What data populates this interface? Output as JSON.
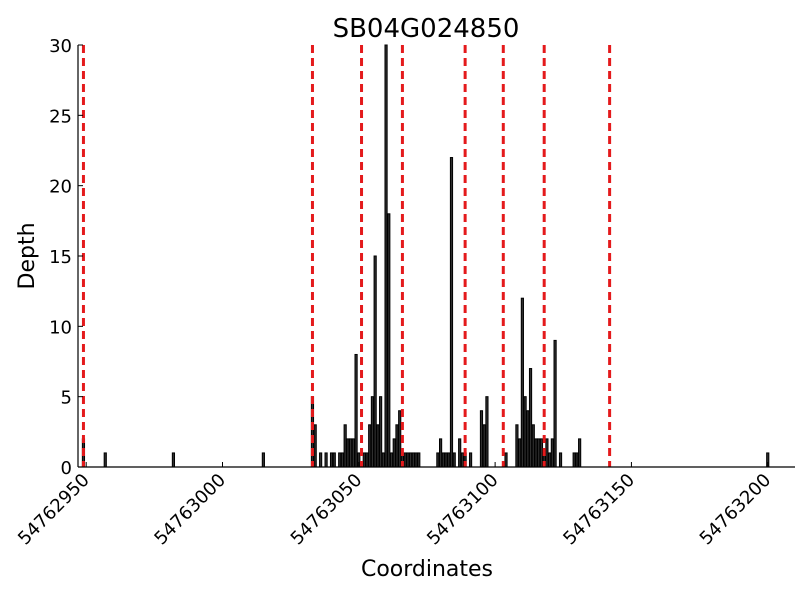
{
  "chart_data": {
    "type": "bar",
    "title": "SB04G024850",
    "xlabel": "Coordinates",
    "ylabel": "Depth",
    "xlim": [
      54762947,
      54763210
    ],
    "ylim": [
      0,
      30
    ],
    "x_ticks": [
      54762950,
      54763000,
      54763050,
      54763100,
      54763150,
      54763200
    ],
    "y_ticks": [
      0,
      5,
      10,
      15,
      20,
      25,
      30
    ],
    "grid": false,
    "bar_color": "#2f2f2f",
    "bar_edge_color": "#000000",
    "boundary_line_color": "#e41a1c",
    "x": [
      54762949,
      54762957,
      54762982,
      54763015,
      54763033,
      54763034,
      54763036,
      54763038,
      54763040,
      54763041,
      54763043,
      54763044,
      54763045,
      54763046,
      54763047,
      54763048,
      54763049,
      54763050,
      54763052,
      54763053,
      54763054,
      54763055,
      54763056,
      54763057,
      54763058,
      54763059,
      54763060,
      54763061,
      54763062,
      54763063,
      54763064,
      54763065,
      54763066,
      54763067,
      54763068,
      54763069,
      54763070,
      54763071,
      54763072,
      54763079,
      54763080,
      54763081,
      54763082,
      54763083,
      54763084,
      54763085,
      54763087,
      54763088,
      54763089,
      54763091,
      54763095,
      54763096,
      54763097,
      54763104,
      54763108,
      54763109,
      54763110,
      54763111,
      54763112,
      54763113,
      54763114,
      54763115,
      54763116,
      54763117,
      54763118,
      54763119,
      54763120,
      54763121,
      54763122,
      54763124,
      54763129,
      54763130,
      54763131,
      54763200
    ],
    "values": [
      2,
      1,
      1,
      1,
      5,
      3,
      1,
      1,
      1,
      1,
      1,
      1,
      3,
      2,
      2,
      2,
      8,
      1,
      1,
      1,
      3,
      5,
      15,
      3,
      5,
      1,
      30,
      18,
      1,
      2,
      3,
      4,
      1,
      1,
      1,
      1,
      1,
      1,
      1,
      1,
      2,
      1,
      1,
      1,
      22,
      1,
      2,
      1,
      1,
      1,
      4,
      3,
      5,
      1,
      3,
      2,
      12,
      5,
      4,
      7,
      3,
      2,
      2,
      2,
      1,
      2,
      1,
      2,
      9,
      1,
      1,
      1,
      2,
      1
    ],
    "boundaries": [
      54762949,
      54763033,
      54763051,
      54763066,
      54763089,
      54763103,
      54763118,
      54763142
    ]
  }
}
